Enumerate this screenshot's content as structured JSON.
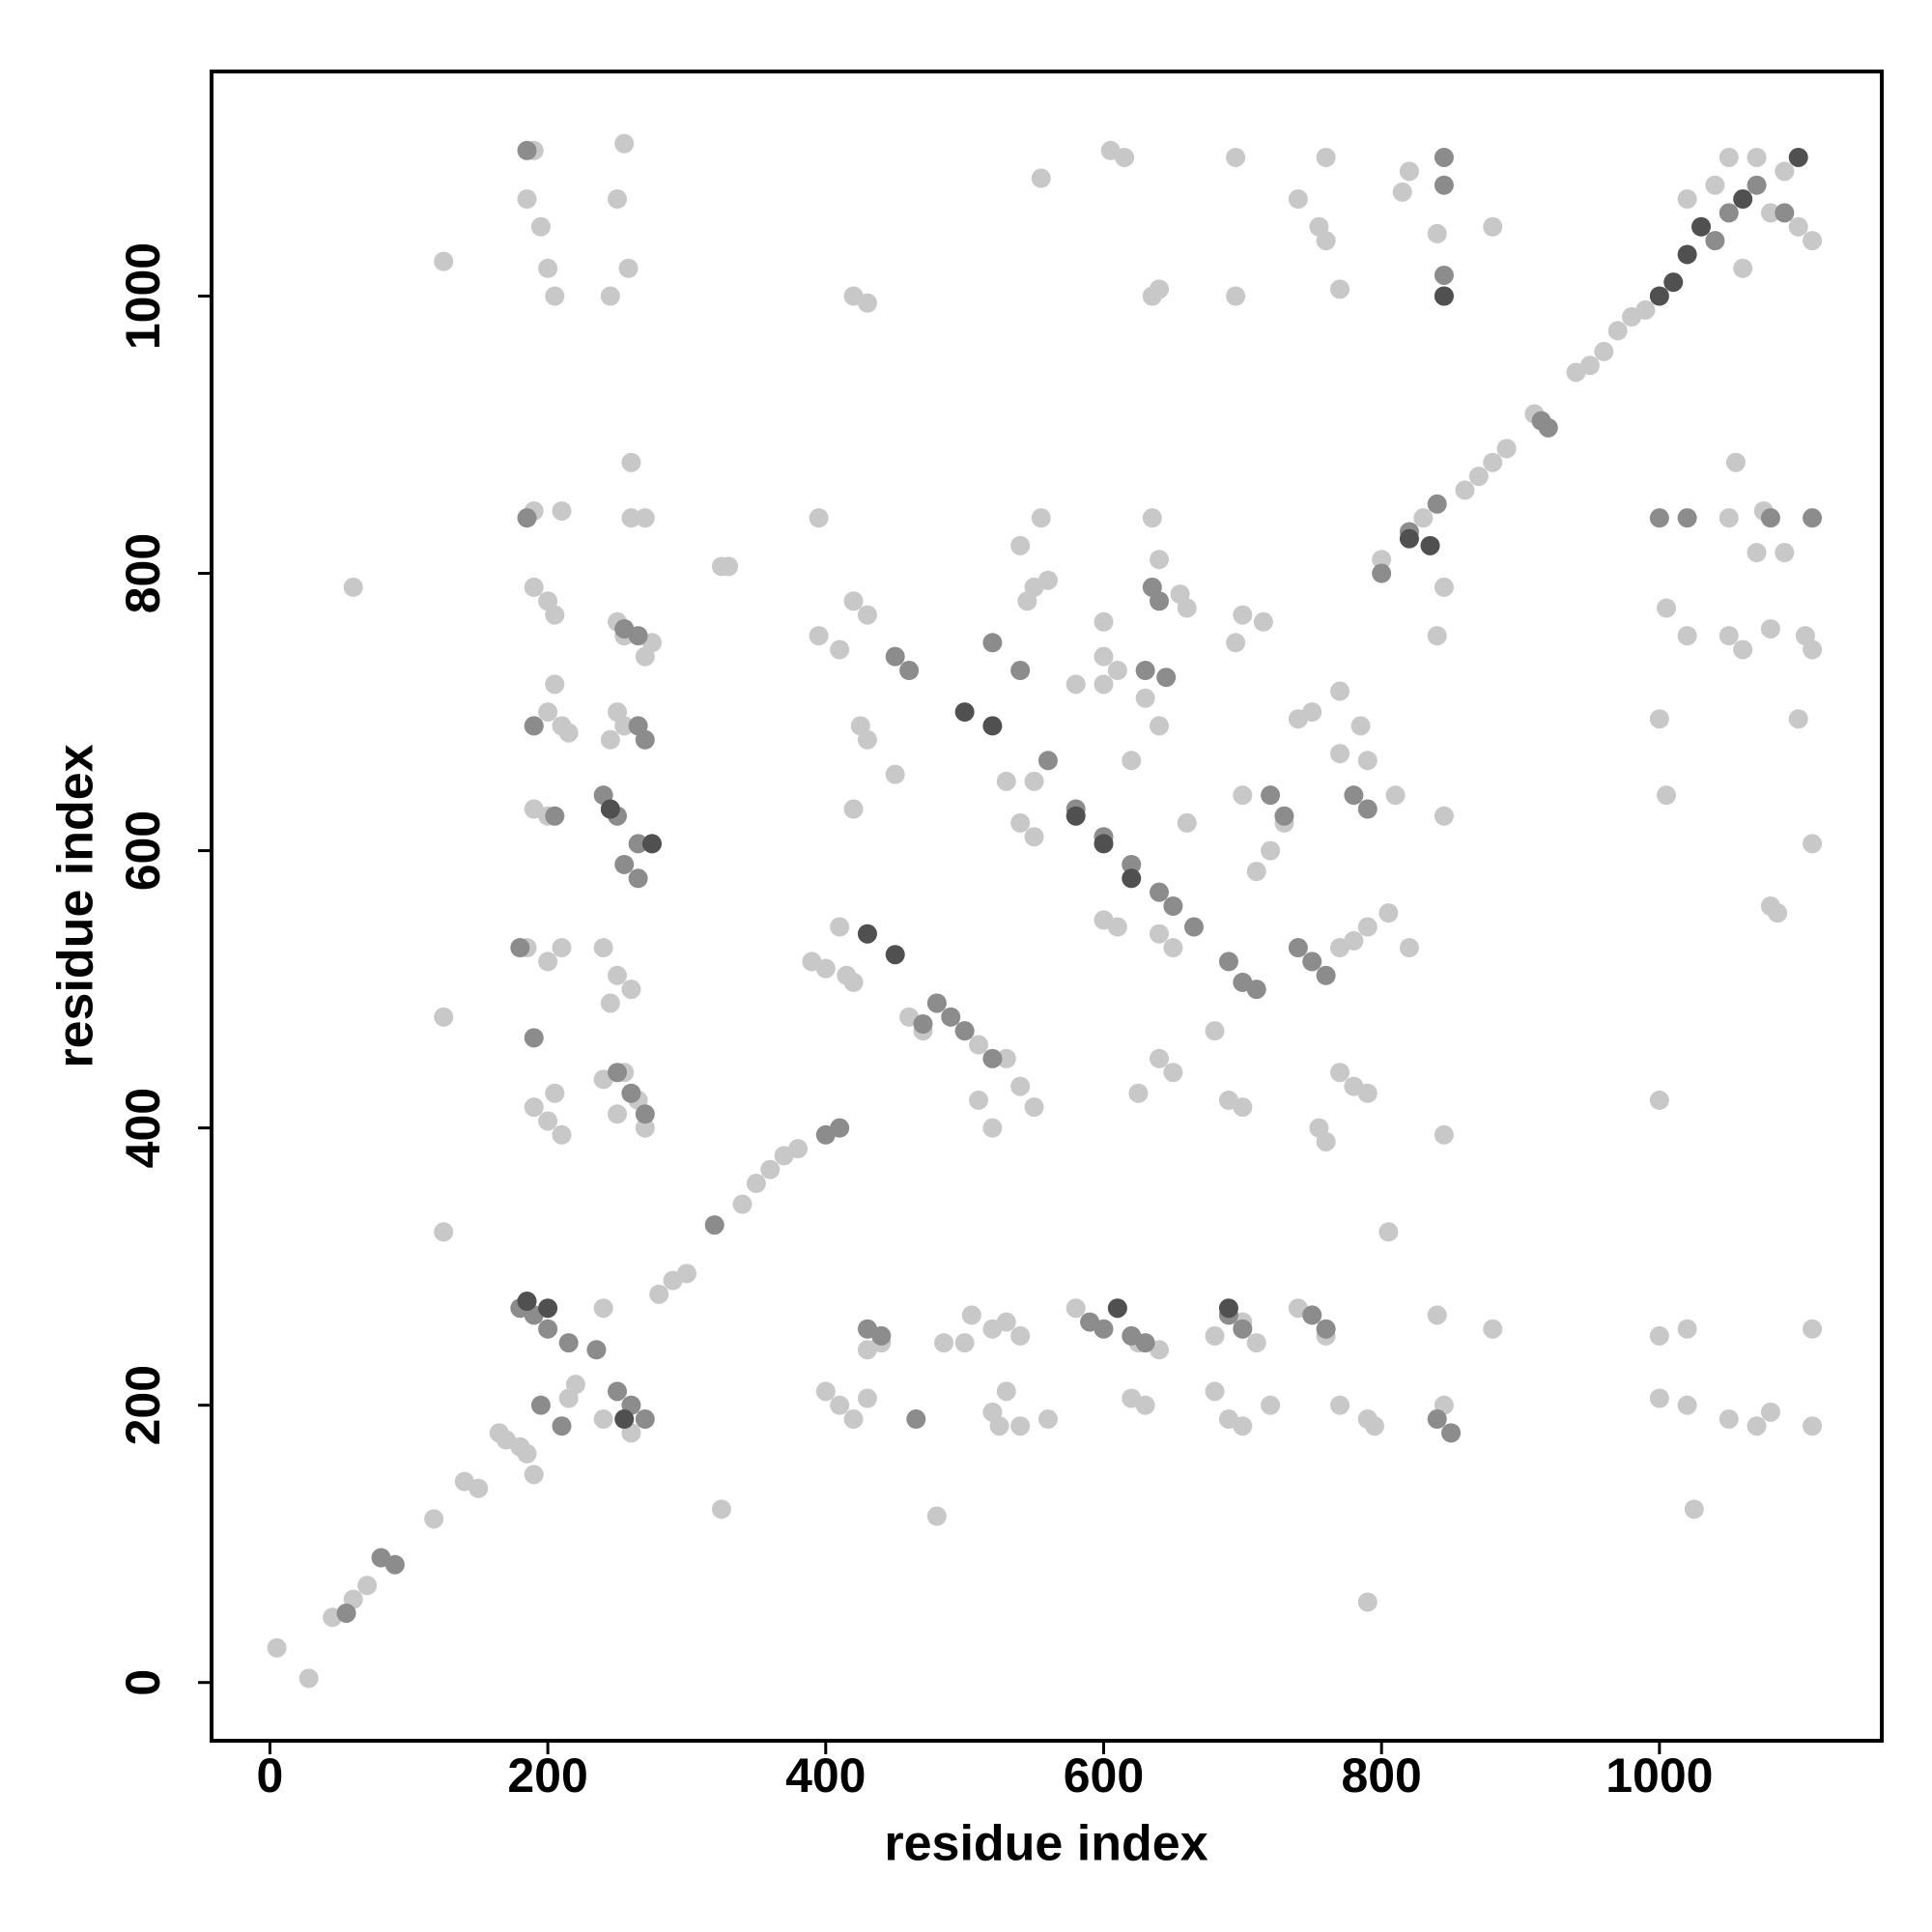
{
  "chart_data": {
    "type": "scatter",
    "x_label": "residue index",
    "y_label": "residue index",
    "xlim": [
      -42,
      1160
    ],
    "ylim": [
      -42,
      1162
    ],
    "xticks": [
      0,
      200,
      400,
      600,
      800,
      1000
    ],
    "yticks": [
      0,
      200,
      400,
      600,
      800,
      1000
    ],
    "grid": false,
    "series": [
      {
        "color": "#c8c8c8",
        "x": [
          5,
          28,
          45,
          60,
          70,
          118,
          140,
          150,
          165,
          170,
          180,
          185,
          190,
          280,
          290,
          300,
          320,
          340,
          350,
          360,
          370,
          380,
          960,
          970,
          980,
          990,
          940,
          950,
          910,
          880,
          890,
          860,
          870,
          830,
          800,
          1040,
          1050,
          1070,
          1090,
          1100,
          1110,
          1080,
          1060,
          1020,
          125,
          190,
          185,
          195,
          200,
          205,
          255,
          250,
          245,
          258,
          555,
          605,
          615,
          420,
          430,
          635,
          640,
          695,
          695,
          740,
          755,
          760,
          760,
          770,
          815,
          820,
          840,
          880,
          260,
          60,
          125,
          125,
          325,
          325,
          480,
          790,
          805,
          1025,
          1020,
          1000,
          1000,
          1020,
          1050,
          1070,
          1080,
          1110,
          1110,
          1000,
          1005,
          1000,
          1005,
          1020,
          1050,
          1060,
          1080,
          1105,
          1110,
          1100,
          1110,
          1080,
          1085,
          1075,
          1090,
          1070,
          1050,
          1055,
          845,
          840,
          845,
          845,
          840,
          845,
          880,
          805,
          790,
          780,
          770,
          820,
          810,
          790,
          785,
          770,
          750,
          740,
          755,
          760,
          770,
          780,
          790,
          770,
          720,
          710,
          700,
          730,
          700,
          695,
          715,
          655,
          660,
          640,
          635,
          600,
          600,
          610,
          630,
          640,
          620,
          600,
          580,
          660,
          640,
          625,
          650,
          690,
          700,
          680,
          650,
          640,
          610,
          600,
          550,
          530,
          540,
          550,
          420,
          425,
          430,
          450,
          395,
          410,
          395,
          330,
          420,
          430,
          390,
          400,
          415,
          420,
          410,
          430,
          510,
          520,
          540,
          545,
          550,
          560,
          520,
          530,
          540,
          500,
          505,
          485,
          520,
          525,
          530,
          540,
          560,
          400,
          420,
          410,
          430,
          430,
          440,
          620,
          630,
          680,
          690,
          700,
          720,
          770,
          790,
          795,
          680,
          700,
          710,
          740,
          760,
          580,
          610,
          625,
          640,
          190,
          200,
          210,
          205,
          215,
          190,
          200,
          185,
          200,
          210,
          190,
          200,
          210,
          205,
          190,
          200,
          205,
          190,
          210,
          250,
          245,
          255,
          240,
          250,
          260,
          245,
          250,
          240,
          255,
          265,
          270,
          260,
          270,
          275,
          250,
          255,
          270,
          220,
          215,
          240,
          260,
          240,
          555,
          470,
          460,
          480,
          500,
          510,
          530,
          540,
          550
        ],
        "values": [
          25,
          3,
          47,
          60,
          70,
          118,
          145,
          140,
          180,
          175,
          170,
          165,
          150,
          280,
          290,
          295,
          330,
          345,
          360,
          370,
          380,
          385,
          960,
          975,
          985,
          990,
          945,
          950,
          915,
          880,
          890,
          860,
          870,
          840,
          810,
          1080,
          1100,
          1100,
          1090,
          1050,
          1040,
          1060,
          1020,
          1070,
          1025,
          1105,
          1070,
          1050,
          1020,
          1000,
          1110,
          1070,
          1000,
          1020,
          1085,
          1105,
          1100,
          1000,
          995,
          1000,
          1005,
          1100,
          1000,
          1070,
          1050,
          1040,
          1100,
          1005,
          1075,
          1090,
          1045,
          1050,
          880,
          790,
          480,
          325,
          805,
          125,
          120,
          58,
          325,
          125,
          200,
          205,
          250,
          255,
          190,
          185,
          195,
          255,
          185,
          420,
          640,
          695,
          775,
          755,
          755,
          745,
          760,
          755,
          745,
          695,
          605,
          560,
          555,
          845,
          815,
          815,
          840,
          880,
          790,
          755,
          625,
          395,
          265,
          200,
          255,
          555,
          545,
          535,
          530,
          530,
          640,
          665,
          690,
          715,
          700,
          695,
          400,
          390,
          440,
          430,
          425,
          670,
          600,
          585,
          640,
          620,
          770,
          750,
          765,
          785,
          775,
          810,
          840,
          765,
          740,
          730,
          710,
          690,
          665,
          720,
          720,
          620,
          450,
          425,
          440,
          420,
          415,
          470,
          530,
          540,
          545,
          550,
          650,
          650,
          620,
          610,
          630,
          690,
          680,
          655,
          755,
          745,
          840,
          805,
          780,
          770,
          520,
          515,
          510,
          505,
          545,
          540,
          420,
          400,
          820,
          780,
          790,
          795,
          255,
          260,
          250,
          245,
          265,
          245,
          195,
          185,
          210,
          185,
          190,
          210,
          190,
          200,
          205,
          240,
          245,
          205,
          200,
          210,
          190,
          185,
          200,
          200,
          190,
          185,
          250,
          260,
          245,
          270,
          250,
          270,
          270,
          245,
          240,
          690,
          700,
          690,
          720,
          685,
          630,
          625,
          530,
          520,
          530,
          415,
          405,
          395,
          425,
          790,
          780,
          770,
          845,
          845,
          700,
          680,
          690,
          530,
          510,
          500,
          490,
          410,
          435,
          440,
          420,
          400,
          840,
          840,
          750,
          765,
          755,
          740,
          215,
          205,
          190,
          180,
          270,
          840,
          470,
          480,
          490,
          470,
          460,
          450,
          430,
          415
        ]
      },
      {
        "color": "#8c8c8c",
        "x": [
          80,
          90,
          55,
          185,
          845,
          845,
          845,
          845,
          190,
          465,
          185,
          190,
          205,
          180,
          240,
          250,
          265,
          255,
          265,
          235,
          250,
          260,
          270,
          250,
          260,
          270,
          265,
          270,
          255,
          265,
          410,
          430,
          440,
          450,
          460,
          480,
          490,
          470,
          500,
          520,
          520,
          540,
          560,
          580,
          600,
          620,
          640,
          650,
          665,
          630,
          645,
          635,
          640,
          690,
          700,
          710,
          720,
          730,
          740,
          750,
          760,
          780,
          790,
          590,
          600,
          620,
          630,
          690,
          700,
          750,
          760,
          195,
          210,
          180,
          190,
          200,
          215,
          850,
          840,
          1000,
          1020,
          1080,
          1110,
          1040,
          1050,
          1070,
          1090,
          820,
          840,
          800,
          320,
          400,
          915,
          920
        ],
        "values": [
          90,
          85,
          50,
          1105,
          1000,
          1015,
          1080,
          1100,
          465,
          190,
          840,
          690,
          625,
          530,
          640,
          625,
          605,
          590,
          580,
          240,
          210,
          200,
          190,
          440,
          425,
          410,
          690,
          680,
          760,
          755,
          400,
          255,
          250,
          740,
          730,
          490,
          480,
          475,
          470,
          450,
          750,
          730,
          665,
          630,
          610,
          590,
          570,
          560,
          545,
          730,
          725,
          790,
          780,
          520,
          505,
          500,
          640,
          625,
          530,
          520,
          510,
          640,
          630,
          260,
          255,
          250,
          245,
          265,
          255,
          265,
          255,
          200,
          185,
          270,
          265,
          255,
          245,
          180,
          190,
          840,
          840,
          840,
          840,
          1040,
          1060,
          1080,
          1060,
          830,
          850,
          800,
          330,
          395,
          910,
          905
        ]
      },
      {
        "color": "#505050",
        "x": [
          1000,
          1010,
          1020,
          1030,
          1060,
          1100,
          820,
          835,
          845,
          580,
          600,
          620,
          520,
          500,
          430,
          450,
          245,
          275,
          255,
          610,
          690,
          185,
          200
        ],
        "values": [
          1000,
          1010,
          1030,
          1050,
          1070,
          1100,
          825,
          820,
          1000,
          625,
          605,
          580,
          690,
          700,
          540,
          525,
          630,
          605,
          190,
          270,
          270,
          275,
          270
        ]
      }
    ]
  }
}
